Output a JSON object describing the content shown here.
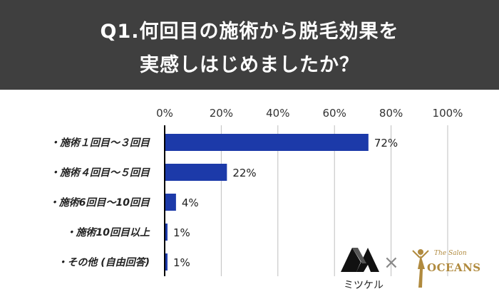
{
  "title": {
    "line1": "Q1.何回目の施術から脱毛効果を",
    "line2": "実感しはじめましたか？"
  },
  "colors": {
    "header_bg": "#3f3f3f",
    "bar": "#1c3aa9",
    "grid": "#bfbfbf",
    "axis": "#000000"
  },
  "chart_data": {
    "type": "bar",
    "orientation": "horizontal",
    "categories": [
      "・施術１回目～３回目",
      "・施術４回目～５回目",
      "・施術6回目～10回目",
      "・施術10回目以上",
      "・その他 (自由回答)"
    ],
    "values": [
      72,
      22,
      4,
      1,
      1
    ],
    "value_labels": [
      "72%",
      "22%",
      "4%",
      "1%",
      "1%"
    ],
    "xticks": [
      "0%",
      "20%",
      "40%",
      "60%",
      "80%",
      "100%"
    ],
    "xlim": [
      0,
      100
    ],
    "grid": true,
    "legend": "none"
  },
  "logos": {
    "left_name": "mitsukeru-logo",
    "left_text": "ミツケル",
    "separator": "×",
    "right_name": "oceans-logo",
    "right_text": "OCEANS",
    "right_script": "The Salon"
  }
}
